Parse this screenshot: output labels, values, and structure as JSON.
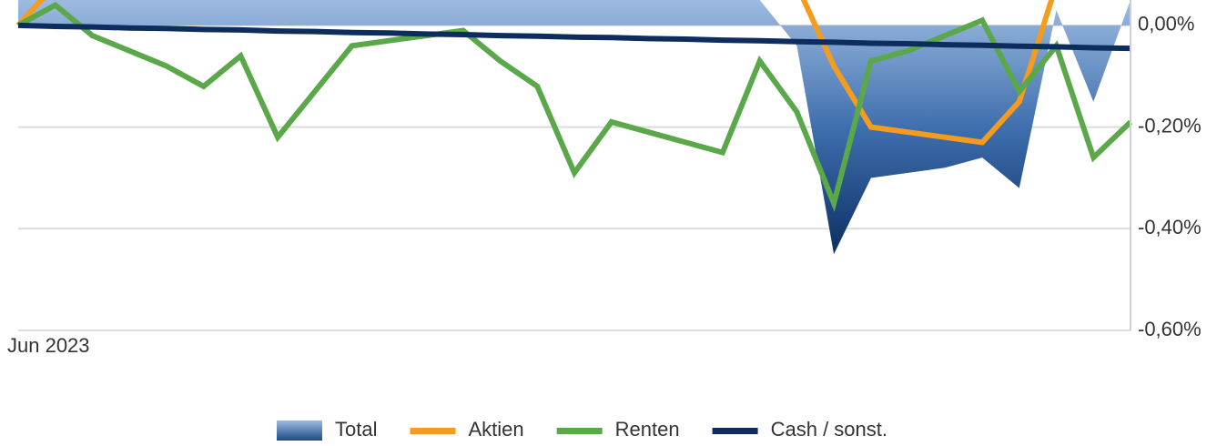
{
  "chart_data": {
    "type": "line",
    "categories": [
      "Jun 2023",
      null,
      null,
      null,
      null,
      null,
      null,
      null,
      null,
      null,
      null,
      null,
      null,
      null,
      null,
      null,
      null,
      null,
      null,
      null,
      null,
      null,
      null,
      null,
      null,
      null,
      null,
      null,
      null,
      null,
      null
    ],
    "series": [
      {
        "name": "Total",
        "type": "area",
        "color": "#2f5f9e",
        "values": [
          0.05,
          0.05,
          0.05,
          0.05,
          0.05,
          0.05,
          0.05,
          0.05,
          0.05,
          0.05,
          0.05,
          0.05,
          0.05,
          0.05,
          0.05,
          0.05,
          0.05,
          0.05,
          0.05,
          0.05,
          0.05,
          -0.04,
          -0.45,
          -0.3,
          -0.29,
          -0.28,
          -0.26,
          -0.32,
          0.03,
          -0.15,
          0.05
        ]
      },
      {
        "name": "Aktien",
        "color": "#f39c1e",
        "values": [
          0,
          0.08,
          0.08,
          0.08,
          0.08,
          0.08,
          0.08,
          0.08,
          0.08,
          0.08,
          0.08,
          0.08,
          0.08,
          0.08,
          0.08,
          0.08,
          0.08,
          0.08,
          0.08,
          0.08,
          0.08,
          0.08,
          -0.08,
          -0.2,
          -0.21,
          -0.22,
          -0.23,
          -0.15,
          0.08,
          0.08,
          0.08
        ]
      },
      {
        "name": "Renten",
        "color": "#5aa84a",
        "values": [
          0,
          0.04,
          -0.02,
          -0.05,
          -0.08,
          -0.12,
          -0.06,
          -0.22,
          -0.13,
          -0.04,
          -0.03,
          -0.02,
          -0.01,
          -0.07,
          -0.12,
          -0.29,
          -0.19,
          -0.21,
          -0.23,
          -0.25,
          -0.07,
          -0.17,
          -0.35,
          -0.07,
          -0.05,
          -0.02,
          0.01,
          -0.13,
          -0.04,
          -0.26,
          -0.19
        ]
      },
      {
        "name": "Cash / sonst.",
        "color": "#0d2d5e",
        "values": [
          0,
          -0.002,
          -0.003,
          -0.005,
          -0.006,
          -0.008,
          -0.009,
          -0.011,
          -0.012,
          -0.014,
          -0.015,
          -0.017,
          -0.018,
          -0.02,
          -0.021,
          -0.023,
          -0.024,
          -0.026,
          -0.027,
          -0.029,
          -0.03,
          -0.032,
          -0.033,
          -0.035,
          -0.036,
          -0.038,
          -0.039,
          -0.041,
          -0.042,
          -0.044,
          -0.045
        ]
      }
    ],
    "ylim": [
      -0.6,
      0.05
    ],
    "yticks": [
      {
        "value": 0,
        "label": "0,00%"
      },
      {
        "value": -0.2,
        "label": "-0,20%"
      },
      {
        "value": -0.4,
        "label": "-0,40%"
      },
      {
        "value": -0.6,
        "label": "-0,60%"
      }
    ],
    "grid": true,
    "legend": "bottom"
  }
}
